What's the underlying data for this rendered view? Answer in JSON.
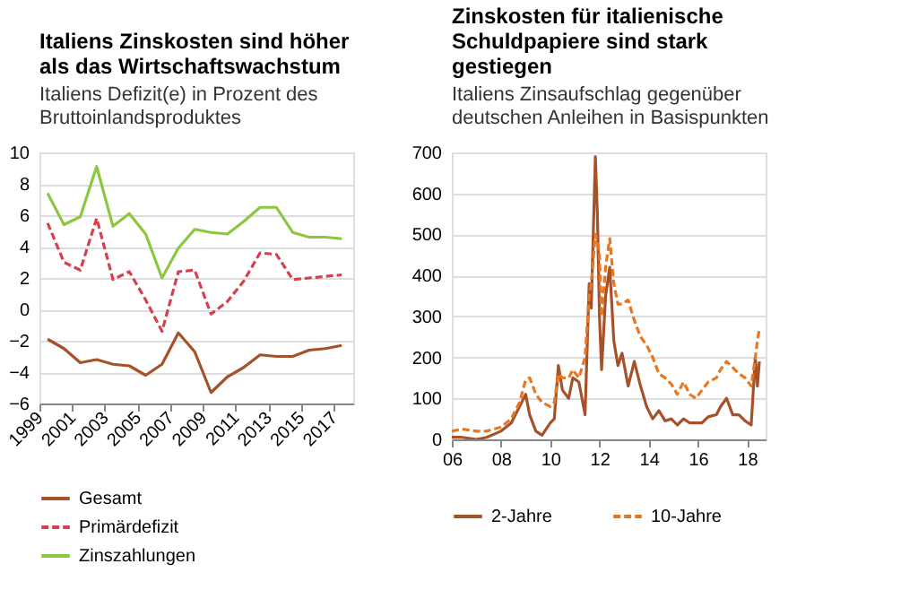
{
  "chart_data": [
    {
      "type": "line",
      "title": "Italiens Zinskosten sind höher als das Wirtschaftswachstum",
      "subtitle": "Italiens Defizit(e) in Prozent des Bruttoinlandsproduktes",
      "x": [
        1999.5,
        2000.5,
        2001.5,
        2002.5,
        2003.5,
        2004.5,
        2005.5,
        2006.5,
        2007.5,
        2008.5,
        2009.5,
        2010.5,
        2011.5,
        2012.5,
        2013.5,
        2014.5,
        2015.5,
        2016.5,
        2017.5
      ],
      "xlim": [
        1999,
        2018.2
      ],
      "xticks": [
        1999,
        2001,
        2003,
        2005,
        2007,
        2009,
        2011,
        2013,
        2015,
        2017
      ],
      "ylim": [
        -6,
        10
      ],
      "yticks": [
        -6,
        -4,
        -2,
        0,
        2,
        4,
        6,
        8,
        10
      ],
      "grid": "y",
      "legend": "bottom",
      "marker": "none",
      "series": [
        {
          "name": "Gesamt",
          "color": "#a5522b",
          "line_style": "solid",
          "values": [
            -1.9,
            -2.5,
            -3.4,
            -3.2,
            -3.5,
            -3.6,
            -4.2,
            -3.5,
            -1.5,
            -2.7,
            -5.3,
            -4.3,
            -3.7,
            -2.9,
            -3.0,
            -3.0,
            -2.6,
            -2.5,
            -2.3
          ]
        },
        {
          "name": "Primärdefizit",
          "color": "#d6404e",
          "line_style": "dashed",
          "values": [
            5.5,
            3.0,
            2.5,
            5.8,
            1.9,
            2.4,
            0.6,
            -1.4,
            2.4,
            2.5,
            -0.3,
            0.5,
            1.8,
            3.6,
            3.5,
            1.9,
            2.0,
            2.1,
            2.2
          ]
        },
        {
          "name": "Zinszahlungen",
          "color": "#8dc63f",
          "line_style": "solid",
          "values": [
            7.4,
            5.4,
            5.9,
            9.1,
            5.3,
            6.1,
            4.8,
            2.0,
            3.9,
            5.1,
            4.9,
            4.8,
            5.6,
            6.5,
            6.5,
            4.9,
            4.6,
            4.6,
            4.5
          ]
        }
      ]
    },
    {
      "type": "line",
      "title": "Zinskosten für italienische Schuldpapiere sind stark gestiegen",
      "subtitle": "Italiens Zinsaufschlag gegenüber deutschen Anleihen in Basispunkten",
      "x": [
        "2006-01",
        "2006-06",
        "2007-01",
        "2007-06",
        "2008-01",
        "2008-06",
        "2008-10",
        "2009-01",
        "2009-03",
        "2009-06",
        "2009-09",
        "2010-01",
        "2010-03",
        "2010-05",
        "2010-07",
        "2010-10",
        "2010-12",
        "2011-03",
        "2011-06",
        "2011-08",
        "2011-09",
        "2011-11",
        "2011-12",
        "2012-01",
        "2012-02",
        "2012-04",
        "2012-06",
        "2012-08",
        "2012-10",
        "2012-12",
        "2013-03",
        "2013-06",
        "2013-09",
        "2013-12",
        "2014-03",
        "2014-06",
        "2014-09",
        "2014-12",
        "2015-03",
        "2015-06",
        "2015-09",
        "2015-12",
        "2016-03",
        "2016-06",
        "2016-10",
        "2016-12",
        "2017-03",
        "2017-06",
        "2017-09",
        "2017-12",
        "2018-03",
        "2018-05",
        "2018-06",
        "2018-07"
      ],
      "xlim": [
        "2006-01",
        "2018-10"
      ],
      "xticks": [
        {
          "value": "2006",
          "label": "06"
        },
        {
          "value": "2008",
          "label": "08"
        },
        {
          "value": "2010",
          "label": "10"
        },
        {
          "value": "2012",
          "label": "12"
        },
        {
          "value": "2014",
          "label": "14"
        },
        {
          "value": "2016",
          "label": "16"
        },
        {
          "value": "2018",
          "label": "18"
        }
      ],
      "ylim": [
        0,
        700
      ],
      "yticks": [
        0,
        100,
        200,
        300,
        400,
        500,
        600,
        700
      ],
      "grid": "y",
      "legend": "bottom",
      "marker": "none",
      "series": [
        {
          "name": "2-Jahre",
          "color": "#a5522b",
          "line_style": "solid",
          "values": [
            5,
            5,
            0,
            5,
            20,
            40,
            80,
            110,
            60,
            20,
            10,
            40,
            50,
            180,
            120,
            100,
            150,
            140,
            60,
            380,
            320,
            690,
            550,
            300,
            170,
            350,
            420,
            240,
            180,
            210,
            130,
            190,
            130,
            80,
            50,
            70,
            45,
            50,
            35,
            50,
            40,
            40,
            40,
            55,
            60,
            80,
            100,
            60,
            60,
            45,
            35,
            200,
            130,
            190
          ]
        },
        {
          "name": "10-Jahre",
          "color": "#e87722",
          "line_style": "dashed",
          "values": [
            20,
            25,
            20,
            20,
            30,
            50,
            90,
            145,
            150,
            110,
            90,
            80,
            90,
            160,
            150,
            150,
            170,
            150,
            200,
            350,
            380,
            500,
            480,
            450,
            300,
            420,
            490,
            380,
            330,
            330,
            340,
            290,
            250,
            230,
            200,
            160,
            150,
            135,
            110,
            140,
            110,
            100,
            120,
            140,
            150,
            170,
            190,
            175,
            160,
            150,
            130,
            200,
            240,
            270
          ]
        }
      ]
    }
  ]
}
